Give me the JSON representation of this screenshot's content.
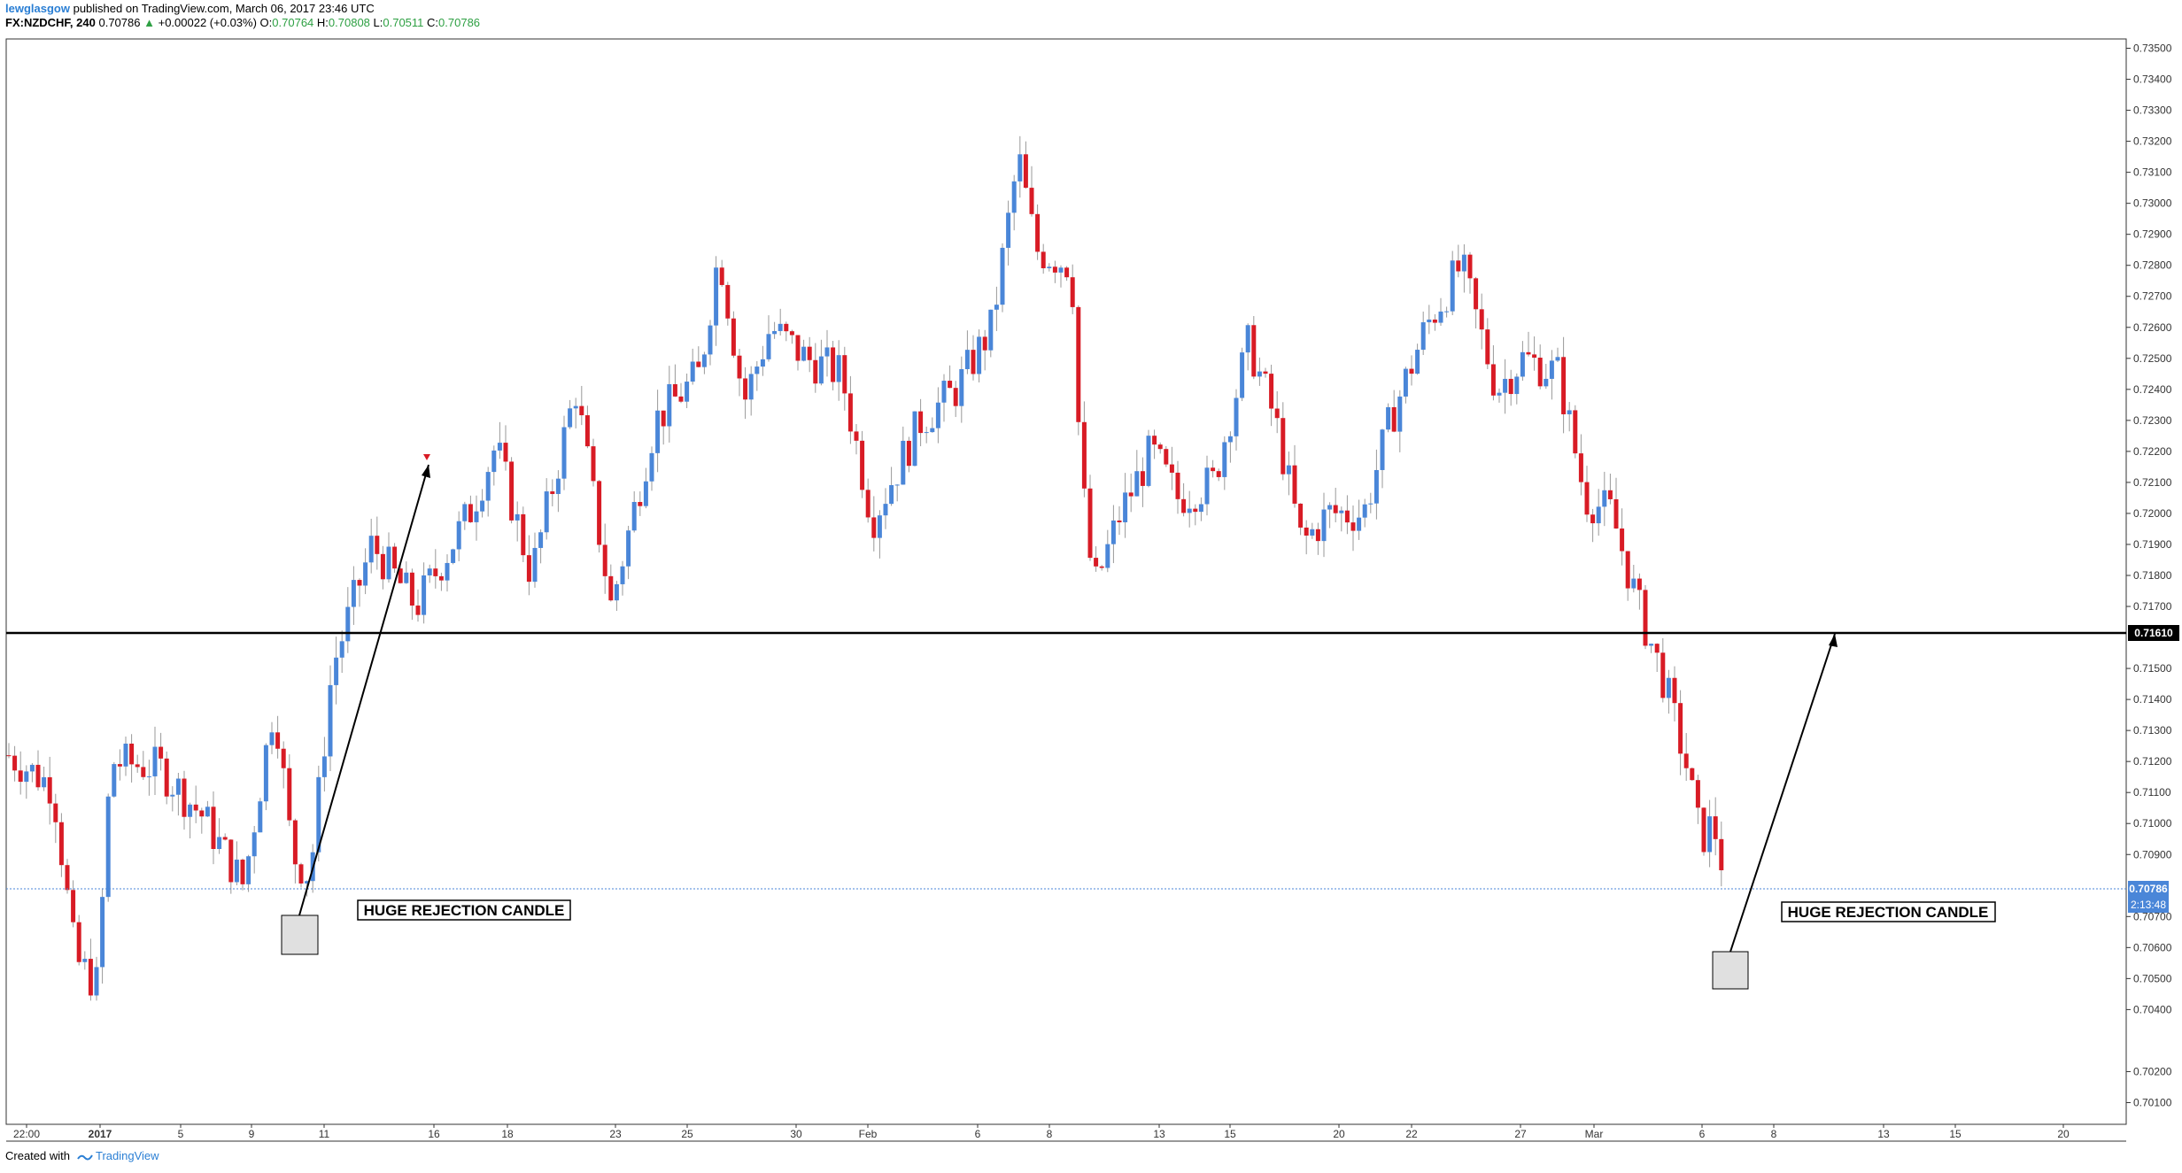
{
  "header": {
    "user": "lewglasgow",
    "published": "published on TradingView.com, March 06, 2017 23:46 UTC",
    "symbol": "FX:NZDCHF, 240",
    "last": "0.70786",
    "change_arrow": "▲",
    "change": "+0.00022 (+0.03%)",
    "o_label": "O:",
    "o": "0.70764",
    "h_label": "H:",
    "h": "0.70808",
    "l_label": "L:",
    "l": "0.70511",
    "c_label": "C:",
    "c": "0.70786"
  },
  "footer": {
    "created_with": "Created with",
    "brand": "TradingView"
  },
  "chart_data": {
    "type": "candlestick",
    "ylim": [
      0.7003,
      0.7353
    ],
    "yticks": [
      "0.73500",
      "0.73400",
      "0.73300",
      "0.73200",
      "0.73100",
      "0.73000",
      "0.72900",
      "0.72800",
      "0.72700",
      "0.72600",
      "0.72500",
      "0.72400",
      "0.72300",
      "0.72200",
      "0.72100",
      "0.72000",
      "0.71900",
      "0.71800",
      "0.71700",
      "0.71500",
      "0.71400",
      "0.71300",
      "0.71200",
      "0.71100",
      "0.71000",
      "0.70900",
      "0.70700",
      "0.70600",
      "0.70500",
      "0.70400",
      "0.70200",
      "0.70100"
    ],
    "xticks": [
      "22:00",
      "2017",
      "5",
      "9",
      "11",
      "16",
      "18",
      "23",
      "25",
      "30",
      "Feb",
      "6",
      "8",
      "13",
      "15",
      "20",
      "22",
      "27",
      "Mar",
      "6",
      "8",
      "13",
      "15",
      "20"
    ],
    "bold_xticks": [
      "2017"
    ],
    "horizontal_level": "0.71610",
    "current_price": "0.70786",
    "countdown": "2:13:48",
    "annotations": [
      "HUGE REJECTION CANDLE",
      "HUGE REJECTION CANDLE"
    ],
    "colors": {
      "up": "#4a86d8",
      "down": "#d81b25",
      "level": "#000000",
      "price_line": "#4a86d8"
    },
    "candles": []
  }
}
